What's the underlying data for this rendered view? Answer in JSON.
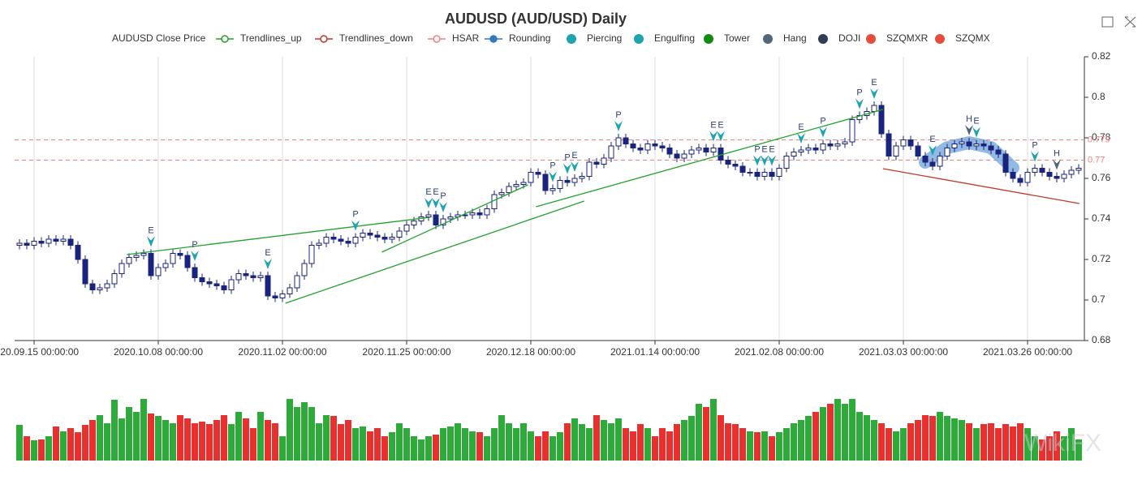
{
  "chart_data": {
    "type": "candlestick",
    "title": "AUDUSD (AUD/USD) Daily",
    "legend": [
      {
        "name": "AUDUSD Close Price",
        "color": "#666666",
        "marker": "none"
      },
      {
        "name": "Trendlines_up",
        "color": "#22a22a",
        "marker": "line-circle"
      },
      {
        "name": "Trendlines_down",
        "color": "#c0392b",
        "marker": "line-circle"
      },
      {
        "name": "HSAR",
        "color": "#f08080",
        "marker": "line-circle"
      },
      {
        "name": "Rounding",
        "color": "#2e7bbf",
        "marker": "line-dot"
      },
      {
        "name": "Piercing",
        "color": "#1fa3b0",
        "marker": "dot"
      },
      {
        "name": "Engulfing",
        "color": "#1fa3b0",
        "marker": "dot"
      },
      {
        "name": "Tower",
        "color": "#138a13",
        "marker": "dot"
      },
      {
        "name": "Hang",
        "color": "#556677",
        "marker": "dot"
      },
      {
        "name": "DOJI",
        "color": "#2c3e50",
        "marker": "dot"
      },
      {
        "name": "SZQMXR",
        "color": "#e74c3c",
        "marker": "dot"
      },
      {
        "name": "SZQMX",
        "color": "#e74c3c",
        "marker": "dot"
      }
    ],
    "categories": [
      null,
      null,
      "2020.09.15 00:00:00",
      null,
      null,
      null,
      null,
      null,
      null,
      null,
      null,
      null,
      null,
      null,
      null,
      null,
      null,
      null,
      null,
      "2020.10.08 00:00:00",
      null,
      null,
      null,
      null,
      null,
      null,
      null,
      null,
      null,
      null,
      null,
      null,
      null,
      null,
      null,
      null,
      "2020.11.02 00:00:00",
      null,
      null,
      null,
      null,
      null,
      null,
      null,
      null,
      null,
      null,
      null,
      null,
      null,
      null,
      null,
      null,
      "2020.11.25 00:00:00",
      null,
      null,
      null,
      null,
      null,
      null,
      null,
      null,
      null,
      null,
      null,
      null,
      null,
      null,
      null,
      null,
      "2020.12.18 00:00:00",
      null,
      null,
      null,
      null,
      null,
      null,
      null,
      null,
      null,
      null,
      null,
      null,
      null,
      null,
      null,
      null,
      "2021.01.14 00:00:00",
      null,
      null,
      null,
      null,
      null,
      null,
      null,
      null,
      null,
      null,
      null,
      null,
      null,
      null,
      null,
      null,
      "2021.02.08 00:00:00",
      null,
      null,
      null,
      null,
      null,
      null,
      null,
      null,
      null,
      null,
      null,
      null,
      null,
      null,
      null,
      null,
      "2021.03.03 00:00:00",
      null,
      null,
      null,
      null,
      null,
      null,
      null,
      null,
      null,
      null,
      null,
      null,
      null,
      null,
      null,
      null,
      "2021.03.26 00:00:00",
      null,
      null,
      null,
      null,
      null,
      null,
      null
    ],
    "ohlc": {
      "open": [
        0.727,
        0.728,
        0.727,
        0.729,
        0.728,
        0.73,
        0.729,
        0.73,
        0.727,
        0.72,
        0.708,
        0.705,
        0.706,
        0.708,
        0.713,
        0.718,
        0.721,
        0.722,
        0.723,
        0.712,
        0.716,
        0.718,
        0.723,
        0.722,
        0.716,
        0.711,
        0.709,
        0.708,
        0.707,
        0.705,
        0.71,
        0.713,
        0.712,
        0.711,
        0.712,
        0.702,
        0.701,
        0.703,
        0.706,
        0.712,
        0.718,
        0.727,
        0.728,
        0.731,
        0.73,
        0.729,
        0.728,
        0.731,
        0.733,
        0.732,
        0.731,
        0.73,
        0.731,
        0.734,
        0.737,
        0.739,
        0.741,
        0.742,
        0.737,
        0.74,
        0.741,
        0.742,
        0.742,
        0.743,
        0.742,
        0.745,
        0.752,
        0.753,
        0.756,
        0.757,
        0.758,
        0.763,
        0.762,
        0.754,
        0.755,
        0.759,
        0.758,
        0.76,
        0.761,
        0.768,
        0.767,
        0.77,
        0.776,
        0.78,
        0.777,
        0.775,
        0.774,
        0.777,
        0.776,
        0.775,
        0.772,
        0.77,
        0.772,
        0.774,
        0.775,
        0.773,
        0.775,
        0.769,
        0.767,
        0.766,
        0.763,
        0.763,
        0.761,
        0.763,
        0.761,
        0.765,
        0.771,
        0.773,
        0.774,
        0.775,
        0.774,
        0.777,
        0.776,
        0.777,
        0.778,
        0.789,
        0.791,
        0.793,
        0.796,
        0.782,
        0.771,
        0.776,
        0.779,
        0.776,
        0.771,
        0.768,
        0.766,
        0.771,
        0.775,
        0.777,
        0.778,
        0.776,
        0.777,
        0.776,
        0.774,
        0.772,
        0.763,
        0.76,
        0.758,
        0.763,
        0.765,
        0.763,
        0.761,
        0.76,
        0.762,
        0.764
      ],
      "high": [
        0.73,
        0.73,
        0.731,
        0.731,
        0.732,
        0.732,
        0.732,
        0.732,
        0.729,
        0.722,
        0.71,
        0.708,
        0.71,
        0.715,
        0.72,
        0.723,
        0.724,
        0.725,
        0.725,
        0.718,
        0.72,
        0.725,
        0.725,
        0.724,
        0.718,
        0.713,
        0.711,
        0.71,
        0.709,
        0.712,
        0.715,
        0.715,
        0.714,
        0.714,
        0.714,
        0.704,
        0.705,
        0.708,
        0.714,
        0.72,
        0.729,
        0.73,
        0.733,
        0.733,
        0.732,
        0.731,
        0.733,
        0.735,
        0.735,
        0.734,
        0.733,
        0.733,
        0.736,
        0.739,
        0.741,
        0.743,
        0.744,
        0.744,
        0.742,
        0.743,
        0.744,
        0.744,
        0.745,
        0.745,
        0.747,
        0.754,
        0.755,
        0.758,
        0.759,
        0.76,
        0.765,
        0.765,
        0.764,
        0.757,
        0.761,
        0.761,
        0.762,
        0.763,
        0.77,
        0.77,
        0.772,
        0.778,
        0.782,
        0.782,
        0.779,
        0.777,
        0.779,
        0.779,
        0.778,
        0.777,
        0.774,
        0.774,
        0.776,
        0.777,
        0.777,
        0.777,
        0.777,
        0.771,
        0.769,
        0.768,
        0.765,
        0.765,
        0.765,
        0.765,
        0.767,
        0.773,
        0.775,
        0.776,
        0.777,
        0.777,
        0.779,
        0.779,
        0.779,
        0.78,
        0.791,
        0.793,
        0.795,
        0.798,
        0.798,
        0.784,
        0.778,
        0.781,
        0.781,
        0.778,
        0.773,
        0.77,
        0.773,
        0.777,
        0.779,
        0.78,
        0.78,
        0.779,
        0.779,
        0.778,
        0.776,
        0.774,
        0.765,
        0.762,
        0.765,
        0.767,
        0.767,
        0.765,
        0.763,
        0.764,
        0.766,
        0.767
      ],
      "low": [
        0.725,
        0.725,
        0.725,
        0.726,
        0.726,
        0.727,
        0.727,
        0.725,
        0.718,
        0.706,
        0.703,
        0.703,
        0.704,
        0.706,
        0.711,
        0.716,
        0.719,
        0.72,
        0.71,
        0.71,
        0.714,
        0.716,
        0.72,
        0.714,
        0.709,
        0.707,
        0.706,
        0.705,
        0.703,
        0.703,
        0.708,
        0.71,
        0.709,
        0.709,
        0.7,
        0.699,
        0.699,
        0.701,
        0.704,
        0.71,
        0.716,
        0.725,
        0.726,
        0.728,
        0.727,
        0.726,
        0.726,
        0.729,
        0.73,
        0.729,
        0.728,
        0.728,
        0.729,
        0.732,
        0.735,
        0.737,
        0.739,
        0.735,
        0.735,
        0.738,
        0.739,
        0.74,
        0.74,
        0.74,
        0.74,
        0.743,
        0.75,
        0.751,
        0.754,
        0.755,
        0.756,
        0.76,
        0.752,
        0.752,
        0.753,
        0.756,
        0.756,
        0.758,
        0.759,
        0.765,
        0.765,
        0.768,
        0.774,
        0.775,
        0.773,
        0.772,
        0.772,
        0.774,
        0.773,
        0.77,
        0.768,
        0.768,
        0.77,
        0.772,
        0.771,
        0.771,
        0.767,
        0.765,
        0.764,
        0.761,
        0.761,
        0.759,
        0.759,
        0.759,
        0.759,
        0.763,
        0.769,
        0.771,
        0.772,
        0.772,
        0.772,
        0.774,
        0.774,
        0.775,
        0.776,
        0.787,
        0.789,
        0.791,
        0.78,
        0.769,
        0.769,
        0.774,
        0.774,
        0.769,
        0.766,
        0.764,
        0.764,
        0.769,
        0.773,
        0.775,
        0.774,
        0.774,
        0.774,
        0.772,
        0.77,
        0.761,
        0.758,
        0.756,
        0.756,
        0.761,
        0.761,
        0.759,
        0.758,
        0.758,
        0.76,
        0.762
      ],
      "close": [
        0.728,
        0.727,
        0.729,
        0.728,
        0.73,
        0.729,
        0.73,
        0.727,
        0.72,
        0.708,
        0.705,
        0.706,
        0.708,
        0.713,
        0.718,
        0.721,
        0.722,
        0.723,
        0.712,
        0.716,
        0.718,
        0.723,
        0.722,
        0.716,
        0.711,
        0.709,
        0.708,
        0.707,
        0.705,
        0.71,
        0.713,
        0.712,
        0.711,
        0.712,
        0.702,
        0.701,
        0.703,
        0.706,
        0.712,
        0.718,
        0.727,
        0.728,
        0.731,
        0.73,
        0.729,
        0.728,
        0.731,
        0.733,
        0.732,
        0.731,
        0.73,
        0.731,
        0.734,
        0.737,
        0.739,
        0.741,
        0.742,
        0.737,
        0.74,
        0.741,
        0.742,
        0.742,
        0.743,
        0.742,
        0.745,
        0.752,
        0.753,
        0.756,
        0.757,
        0.758,
        0.763,
        0.762,
        0.754,
        0.755,
        0.759,
        0.758,
        0.76,
        0.761,
        0.768,
        0.767,
        0.77,
        0.776,
        0.78,
        0.777,
        0.775,
        0.774,
        0.777,
        0.776,
        0.775,
        0.772,
        0.77,
        0.772,
        0.774,
        0.775,
        0.773,
        0.775,
        0.769,
        0.767,
        0.766,
        0.763,
        0.763,
        0.761,
        0.763,
        0.761,
        0.765,
        0.771,
        0.773,
        0.774,
        0.775,
        0.774,
        0.777,
        0.776,
        0.777,
        0.778,
        0.789,
        0.791,
        0.793,
        0.796,
        0.782,
        0.771,
        0.776,
        0.779,
        0.776,
        0.771,
        0.768,
        0.766,
        0.771,
        0.775,
        0.777,
        0.778,
        0.776,
        0.777,
        0.776,
        0.774,
        0.772,
        0.763,
        0.76,
        0.758,
        0.763,
        0.765,
        0.763,
        0.761,
        0.76,
        0.762,
        0.764,
        0.765
      ],
      "up_color": "#ffffff",
      "down_color": "#1a237e",
      "edge_color": "#1a237e"
    },
    "ylim": [
      0.68,
      0.82
    ],
    "yticks": [
      0.68,
      0.7,
      0.72,
      0.74,
      0.76,
      0.78,
      0.8,
      0.82
    ],
    "x_grid": true,
    "trendlines_up": {
      "color": "#22a22a",
      "lines": [
        {
          "x": [
            14.7,
            56.2
          ],
          "y": [
            0.7224,
            0.7408
          ]
        },
        {
          "x": [
            36.4,
            77.3
          ],
          "y": [
            0.6984,
            0.7488
          ]
        },
        {
          "x": [
            49.6,
            69.6
          ],
          "y": [
            0.7236,
            0.7568
          ]
        },
        {
          "x": [
            70.7,
            118.2
          ],
          "y": [
            0.746,
            0.794
          ]
        }
      ]
    },
    "trendlines_down": {
      "color": "#c0392b",
      "lines": [
        {
          "x": [
            118.2,
            145.1
          ],
          "y": [
            0.7648,
            0.7476
          ]
        }
      ]
    },
    "hsar": {
      "color": "#f08080",
      "levels": [
        {
          "value": 0.779,
          "label": "0.779"
        },
        {
          "value": 0.769,
          "label": "0.77"
        }
      ]
    },
    "rounding": {
      "color": "#6fa3d8",
      "x": [
        124,
        127,
        130,
        133,
        136
      ],
      "y": [
        0.768,
        0.7752,
        0.7776,
        0.7752,
        0.7652
      ]
    },
    "patterns": [
      {
        "index": 18,
        "label": "E",
        "color": "#1fa3b0"
      },
      {
        "index": 24,
        "label": "P",
        "color": "#1fa3b0"
      },
      {
        "index": 34,
        "label": "E",
        "color": "#1fa3b0"
      },
      {
        "index": 46,
        "label": "P",
        "color": "#1fa3b0"
      },
      {
        "index": 56,
        "label": "E",
        "color": "#1fa3b0"
      },
      {
        "index": 57,
        "label": "E",
        "color": "#1fa3b0"
      },
      {
        "index": 58,
        "label": "P",
        "color": "#1fa3b0"
      },
      {
        "index": 73,
        "label": "P",
        "color": "#1fa3b0"
      },
      {
        "index": 75,
        "label": "P",
        "color": "#1fa3b0"
      },
      {
        "index": 76,
        "label": "E",
        "color": "#1fa3b0"
      },
      {
        "index": 82,
        "label": "P",
        "color": "#1fa3b0"
      },
      {
        "index": 95,
        "label": "E",
        "color": "#1fa3b0"
      },
      {
        "index": 96,
        "label": "E",
        "color": "#1fa3b0"
      },
      {
        "index": 101,
        "label": "P",
        "color": "#1fa3b0"
      },
      {
        "index": 102,
        "label": "E",
        "color": "#1fa3b0"
      },
      {
        "index": 103,
        "label": "E",
        "color": "#1fa3b0"
      },
      {
        "index": 107,
        "label": "E",
        "color": "#1fa3b0"
      },
      {
        "index": 110,
        "label": "P",
        "color": "#1fa3b0"
      },
      {
        "index": 115,
        "label": "P",
        "color": "#1fa3b0"
      },
      {
        "index": 117,
        "label": "E",
        "color": "#1fa3b0"
      },
      {
        "index": 125,
        "label": "E",
        "color": "#1fa3b0"
      },
      {
        "index": 130,
        "label": "H",
        "color": "#556677"
      },
      {
        "index": 131,
        "label": "E",
        "color": "#1fa3b0"
      },
      {
        "index": 139,
        "label": "P",
        "color": "#1fa3b0"
      },
      {
        "index": 142,
        "label": "H",
        "color": "#556677"
      }
    ],
    "volume": [
      44,
      30,
      25,
      26,
      30,
      42,
      36,
      40,
      35,
      44,
      50,
      56,
      46,
      75,
      52,
      66,
      60,
      76,
      58,
      55,
      50,
      46,
      56,
      52,
      46,
      48,
      45,
      50,
      56,
      45,
      60,
      52,
      40,
      60,
      50,
      46,
      30,
      76,
      66,
      72,
      66,
      46,
      56,
      55,
      45,
      50,
      40,
      42,
      36,
      40,
      30,
      35,
      46,
      40,
      30,
      26,
      30,
      32,
      40,
      42,
      46,
      40,
      36,
      35,
      30,
      40,
      56,
      46,
      40,
      46,
      36,
      30,
      36,
      30,
      35,
      46,
      52,
      45,
      40,
      56,
      50,
      46,
      52,
      40,
      36,
      45,
      40,
      30,
      40,
      36,
      45,
      50,
      55,
      70,
      66,
      76,
      56,
      46,
      45,
      40,
      36,
      35,
      36,
      30,
      35,
      40,
      46,
      50,
      55,
      60,
      66,
      70,
      76,
      70,
      76,
      60,
      56,
      50,
      46,
      40,
      36,
      40,
      46,
      50,
      56,
      55,
      60,
      55,
      52,
      50,
      46,
      40,
      45,
      46,
      40,
      45,
      42,
      46,
      40,
      30,
      26,
      30,
      36,
      30,
      40,
      26
    ],
    "vlim": [
      0,
      80
    ],
    "volume_up_color": "#2eaa3a",
    "volume_down_color": "#e8302f",
    "watermark": "WikiFX"
  }
}
